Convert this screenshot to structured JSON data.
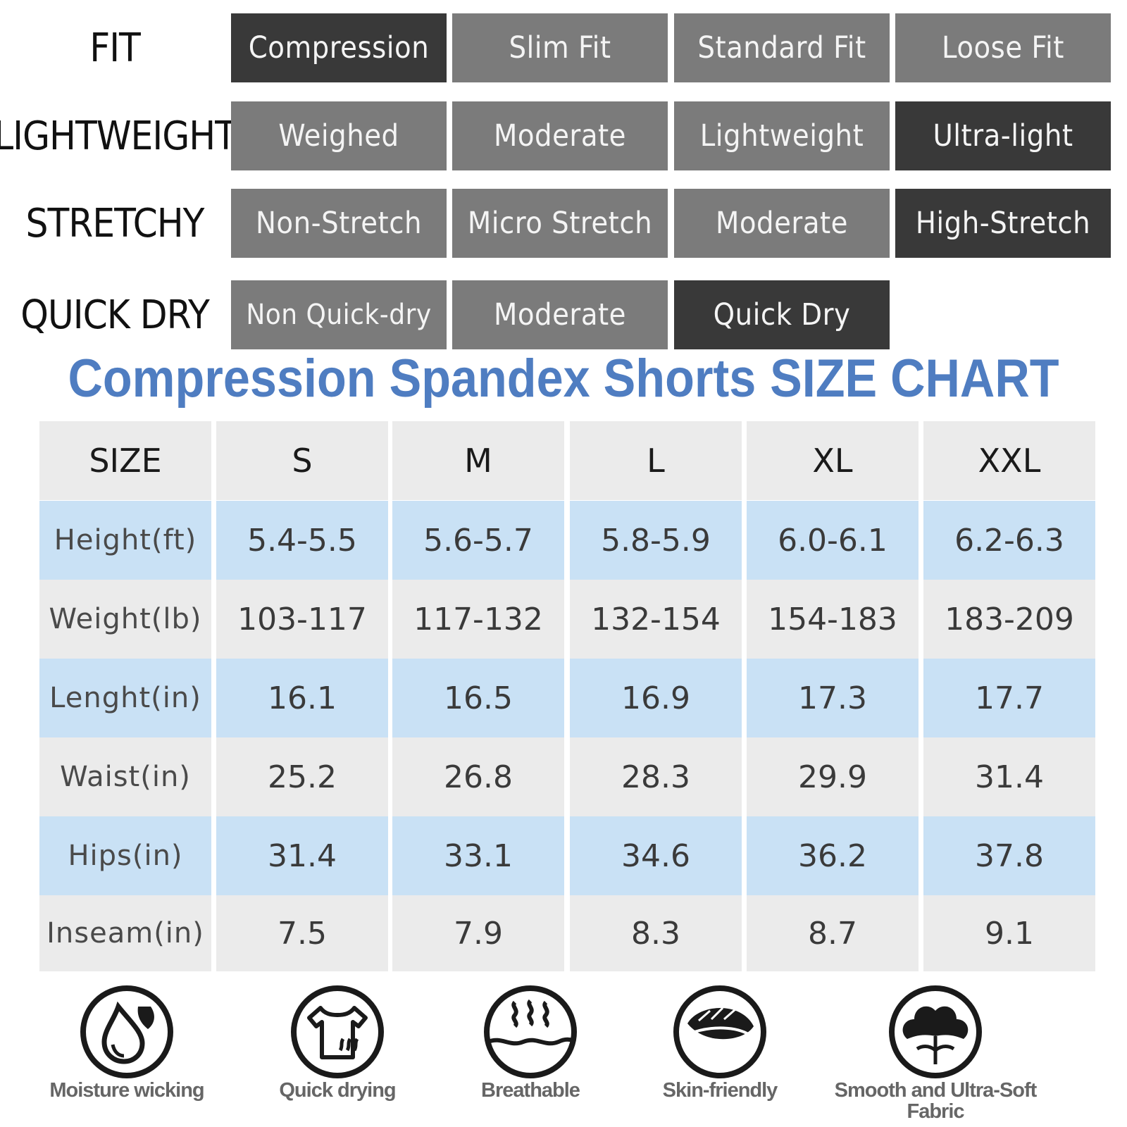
{
  "attributes": [
    {
      "label": "FIT",
      "options": [
        "Compression",
        "Slim Fit",
        "Standard Fit",
        "Loose Fit"
      ],
      "active": 0
    },
    {
      "label": "LIGHTWEIGHT",
      "options": [
        "Weighed",
        "Moderate",
        "Lightweight",
        "Ultra-light"
      ],
      "active": 3
    },
    {
      "label": "STRETCHY",
      "options": [
        "Non-Stretch",
        "Micro Stretch",
        "Moderate",
        "High-Stretch"
      ],
      "active": 3
    },
    {
      "label": "QUICK DRY",
      "options": [
        "Non Quick-dry",
        "Moderate",
        "Quick Dry"
      ],
      "active": 2
    }
  ],
  "title": {
    "part1": "Compression Spandex Shorts",
    "part2": "SIZE CHART",
    "color": "#4f7dc1"
  },
  "size_table": {
    "header": [
      "SIZE",
      "S",
      "M",
      "L",
      "XL",
      "XXL"
    ],
    "rows": [
      [
        "Height(ft)",
        "5.4-5.5",
        "5.6-5.7",
        "5.8-5.9",
        "6.0-6.1",
        "6.2-6.3"
      ],
      [
        "Weight(lb)",
        "103-117",
        "117-132",
        "132-154",
        "154-183",
        "183-209"
      ],
      [
        "Lenght(in)",
        "16.1",
        "16.5",
        "16.9",
        "17.3",
        "17.7"
      ],
      [
        "Waist(in)",
        "25.2",
        "26.8",
        "28.3",
        "29.9",
        "31.4"
      ],
      [
        "Hips(in)",
        "31.4",
        "33.1",
        "34.6",
        "36.2",
        "37.8"
      ],
      [
        "Inseam(in)",
        "7.5",
        "7.9",
        "8.3",
        "8.7",
        "9.1"
      ]
    ]
  },
  "features": [
    {
      "label": "Moisture wicking",
      "icon": "water-drop-icon"
    },
    {
      "label": "Quick drying",
      "icon": "shirt-icon"
    },
    {
      "label": "Breathable",
      "icon": "breath-waves-icon"
    },
    {
      "label": "Skin-friendly",
      "icon": "modal-fabric-icon"
    },
    {
      "label": "Smooth and Ultra-Soft Fabric",
      "icon": "cotton-flower-icon"
    }
  ],
  "colors": {
    "active": "#393939",
    "inactive": "#7b7b7b",
    "row_blue": "#c9e1f5",
    "row_grey": "#ebebeb"
  }
}
